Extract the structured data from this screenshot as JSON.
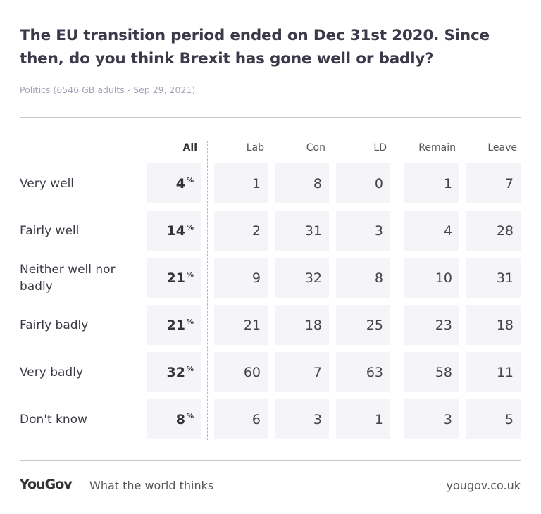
{
  "title": "The EU transition period ended on Dec 31st 2020. Since then, do you think Brexit has gone well or badly?",
  "subtitle": "Politics (6546 GB adults - Sep 29, 2021)",
  "footer": {
    "logo": "YouGov",
    "tagline": "What the world thinks",
    "url": "yougov.co.uk"
  },
  "chart_data": {
    "type": "table",
    "columns": [
      "All",
      "Lab",
      "Con",
      "LD",
      "Remain",
      "Leave"
    ],
    "unit": "%",
    "rows": [
      {
        "label": "Very well",
        "values": [
          4,
          1,
          8,
          0,
          1,
          7
        ]
      },
      {
        "label": "Fairly well",
        "values": [
          14,
          2,
          31,
          3,
          4,
          28
        ]
      },
      {
        "label": "Neither well nor badly",
        "values": [
          21,
          9,
          32,
          8,
          10,
          31
        ]
      },
      {
        "label": "Fairly badly",
        "values": [
          21,
          21,
          18,
          25,
          23,
          18
        ]
      },
      {
        "label": "Very badly",
        "values": [
          32,
          60,
          7,
          63,
          58,
          11
        ]
      },
      {
        "label": "Don't know",
        "values": [
          8,
          6,
          3,
          1,
          3,
          5
        ]
      }
    ]
  }
}
